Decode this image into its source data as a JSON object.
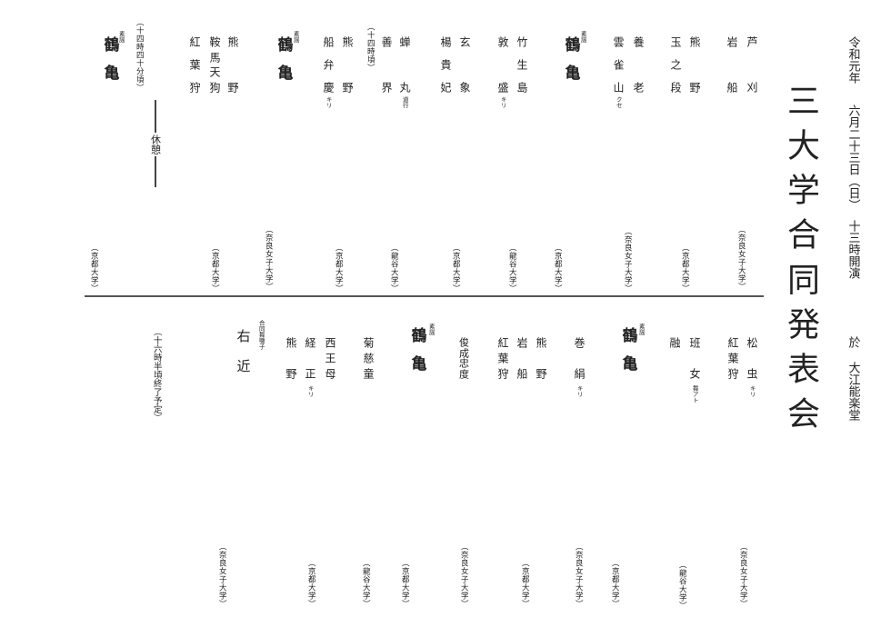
{
  "header": {
    "era": "令和元年",
    "date": "六月二十三日（日）",
    "start": "十三時開演",
    "venue_prefix": "於",
    "venue": "大江能楽堂",
    "title": "三大学合同発表会"
  },
  "top_program": [
    {
      "lines": [
        "芦刈",
        "岩船"
      ],
      "affiliation": "（奈良女子大学）"
    },
    {
      "lines": [
        "熊野",
        "玉之段"
      ],
      "affiliation": "（京都大学）"
    },
    {
      "lines": [
        "養老",
        "雲雀山"
      ],
      "note": "クセ",
      "affiliation": "（奈良女子大学）"
    },
    {
      "lines": [
        "鶴亀"
      ],
      "kind": "素謡",
      "affiliation": "（京都大学）"
    },
    {
      "lines": [
        "竹生島",
        "敦盛"
      ],
      "note": "キリ",
      "affiliation": "（龍谷大学）"
    },
    {
      "lines": [
        "玄象",
        "楊貴妃"
      ],
      "affiliation": "（京都大学）"
    },
    {
      "lines": [
        "蝉丸",
        "善界"
      ],
      "note": "道行",
      "affiliation": "（龍谷大学）"
    },
    {
      "time": "（十四時頃）"
    },
    {
      "lines": [
        "熊野",
        "船弁慶"
      ],
      "note": "キリ",
      "affiliation": "（京都大学）"
    },
    {
      "lines": [
        "鶴亀"
      ],
      "kind": "素謡",
      "affiliation": "（奈良女子大学）"
    },
    {
      "lines": [
        "熊野",
        "鞍馬天狗",
        "紅葉狩"
      ],
      "affiliation": "（京都大学）"
    },
    {
      "time": "（十四時四十分頃）"
    },
    {
      "lines": [
        "鶴亀"
      ],
      "kind": "素謡",
      "affiliation": "（京都大学）"
    }
  ],
  "break_label": "休憩",
  "bottom_program": [
    {
      "lines": [
        "松虫",
        "紅葉狩"
      ],
      "note": "キリ",
      "affiliation": "（奈良女子大学）"
    },
    {
      "lines": [
        "班女",
        "融"
      ],
      "note": "舞アト",
      "affiliation": "（龍谷大学）"
    },
    {
      "lines": [
        "鶴亀"
      ],
      "kind": "素謡",
      "affiliation": "（京都大学）"
    },
    {
      "lines": [
        "巻絹"
      ],
      "note": "キリ",
      "affiliation": "（奈良女子大学）"
    },
    {
      "lines": [
        "熊野",
        "岩船",
        "紅葉狩"
      ],
      "affiliation": "（京都大学）"
    },
    {
      "lines": [
        "俊成忠度"
      ],
      "affiliation": "（奈良女子大学）"
    },
    {
      "lines": [
        "鶴亀"
      ],
      "kind": "素謡",
      "affiliation": "（京都大学）"
    },
    {
      "lines": [
        "菊慈童"
      ],
      "affiliation": "（龍谷大学）"
    },
    {
      "lines": [
        "西王母",
        "経正",
        "熊野"
      ],
      "note": "キリ",
      "affiliation": "（京都大学）"
    },
    {
      "lines": [
        "右近"
      ],
      "kind": "合同舞囃子",
      "affiliation": "（奈良女子大学）"
    }
  ],
  "end_time": "（十六時半頃終了予定）"
}
